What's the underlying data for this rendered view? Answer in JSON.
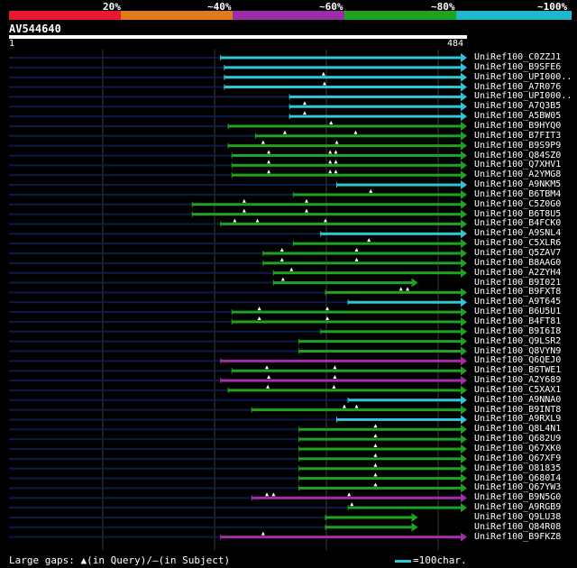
{
  "scale": {
    "colors": [
      "#e8182f",
      "#e07a1d",
      "#9a2ea6",
      "#1fa21f",
      "#20b8c8"
    ],
    "labels": [
      "20%",
      "~40%",
      "~60%",
      "~80%",
      "~100%"
    ]
  },
  "query": {
    "name": "AV544640",
    "start": "1",
    "end": "484",
    "length": 484
  },
  "legend": {
    "gaps_prefix": "Large gaps:",
    "gaps_query": "(in Query)/",
    "gaps_dash": "–",
    "gaps_subject": "(in Subject)",
    "scale_text": "=100char."
  },
  "colors": {
    "cyan": "#2fc7d6",
    "green": "#1fa21f",
    "magenta": "#a52ea8",
    "navy": "#0d1b4a",
    "grid": "#3a3a3a"
  },
  "hits": [
    {
      "label": "UniRef100_C0ZZJ1",
      "s": 225,
      "e": 484,
      "c": "cyan",
      "g": []
    },
    {
      "label": "UniRef100_B9SFE6",
      "s": 229,
      "e": 484,
      "c": "cyan",
      "g": []
    },
    {
      "label": "UniRef100_UPI000..",
      "s": 229,
      "e": 484,
      "c": "cyan",
      "g": [
        334
      ]
    },
    {
      "label": "UniRef100_A7R076",
      "s": 229,
      "e": 484,
      "c": "cyan",
      "g": [
        335
      ]
    },
    {
      "label": "UniRef100_UPI000..",
      "s": 298,
      "e": 484,
      "c": "cyan",
      "g": []
    },
    {
      "label": "UniRef100_A7Q3B5",
      "s": 298,
      "e": 484,
      "c": "cyan",
      "g": [
        314
      ]
    },
    {
      "label": "UniRef100_A5BW05",
      "s": 298,
      "e": 484,
      "c": "cyan",
      "g": [
        314
      ]
    },
    {
      "label": "UniRef100_B9HYQ0",
      "s": 233,
      "e": 484,
      "c": "green",
      "g": [
        342
      ]
    },
    {
      "label": "UniRef100_B7FIT3",
      "s": 262,
      "e": 484,
      "c": "green",
      "g": [
        293,
        368
      ]
    },
    {
      "label": "UniRef100_B9S9P9",
      "s": 233,
      "e": 484,
      "c": "green",
      "g": [
        270,
        348
      ]
    },
    {
      "label": "UniRef100_Q84SZ0",
      "s": 237,
      "e": 484,
      "c": "green",
      "g": [
        276,
        341,
        347
      ]
    },
    {
      "label": "UniRef100_Q7XHV1",
      "s": 237,
      "e": 484,
      "c": "green",
      "g": [
        276,
        341,
        347
      ]
    },
    {
      "label": "UniRef100_A2YMG8",
      "s": 237,
      "e": 484,
      "c": "green",
      "g": [
        276,
        341,
        347
      ]
    },
    {
      "label": "UniRef100_A9NKM5",
      "s": 348,
      "e": 484,
      "c": "cyan",
      "g": []
    },
    {
      "label": "UniRef100_B6TBM4",
      "s": 302,
      "e": 484,
      "c": "green",
      "g": [
        384
      ]
    },
    {
      "label": "UniRef100_C5Z0G0",
      "s": 195,
      "e": 484,
      "c": "green",
      "g": [
        250,
        316
      ]
    },
    {
      "label": "UniRef100_B6T8U5",
      "s": 195,
      "e": 484,
      "c": "green",
      "g": [
        250,
        316
      ]
    },
    {
      "label": "UniRef100_B4FCK0",
      "s": 225,
      "e": 484,
      "c": "green",
      "g": [
        240,
        264,
        336
      ]
    },
    {
      "label": "UniRef100_A9SNL4",
      "s": 331,
      "e": 484,
      "c": "cyan",
      "g": []
    },
    {
      "label": "UniRef100_C5XLR6",
      "s": 302,
      "e": 484,
      "c": "green",
      "g": [
        382
      ]
    },
    {
      "label": "UniRef100_Q5ZAV7",
      "s": 270,
      "e": 484,
      "c": "green",
      "g": [
        290,
        369
      ]
    },
    {
      "label": "UniRef100_B8AAG0",
      "s": 270,
      "e": 484,
      "c": "green",
      "g": [
        290,
        369
      ]
    },
    {
      "label": "UniRef100_A2ZYH4",
      "s": 281,
      "e": 484,
      "c": "green",
      "g": [
        300
      ]
    },
    {
      "label": "UniRef100_B9I021",
      "s": 281,
      "e": 432,
      "c": "green",
      "g": [
        291
      ]
    },
    {
      "label": "UniRef100_B9FXT8",
      "s": 336,
      "e": 484,
      "c": "green",
      "g": [
        416,
        423
      ]
    },
    {
      "label": "UniRef100_A9T645",
      "s": 360,
      "e": 484,
      "c": "cyan",
      "g": []
    },
    {
      "label": "UniRef100_B6U5U1",
      "s": 237,
      "e": 484,
      "c": "green",
      "g": [
        266,
        338
      ]
    },
    {
      "label": "UniRef100_B4FT81",
      "s": 237,
      "e": 484,
      "c": "green",
      "g": [
        266,
        338
      ]
    },
    {
      "label": "UniRef100_B9I6I8",
      "s": 331,
      "e": 484,
      "c": "green",
      "g": []
    },
    {
      "label": "UniRef100_Q9LSR2",
      "s": 308,
      "e": 484,
      "c": "green",
      "g": []
    },
    {
      "label": "UniRef100_Q8VYN9",
      "s": 308,
      "e": 484,
      "c": "green",
      "g": []
    },
    {
      "label": "UniRef100_Q6QEJ0",
      "s": 225,
      "e": 484,
      "c": "magenta",
      "g": []
    },
    {
      "label": "UniRef100_B6TWE1",
      "s": 237,
      "e": 484,
      "c": "green",
      "g": [
        274,
        346
      ]
    },
    {
      "label": "UniRef100_A2Y689",
      "s": 225,
      "e": 484,
      "c": "magenta",
      "g": [
        276,
        346
      ]
    },
    {
      "label": "UniRef100_C5XAX1",
      "s": 233,
      "e": 484,
      "c": "green",
      "g": [
        275,
        345
      ]
    },
    {
      "label": "UniRef100_A9NNA0",
      "s": 360,
      "e": 484,
      "c": "cyan",
      "g": []
    },
    {
      "label": "UniRef100_B9INT8",
      "s": 258,
      "e": 484,
      "c": "green",
      "g": [
        356,
        369
      ]
    },
    {
      "label": "UniRef100_A9RXL9",
      "s": 348,
      "e": 484,
      "c": "cyan",
      "g": []
    },
    {
      "label": "UniRef100_Q8L4N1",
      "s": 308,
      "e": 484,
      "c": "green",
      "g": [
        389
      ]
    },
    {
      "label": "UniRef100_Q682U9",
      "s": 308,
      "e": 484,
      "c": "green",
      "g": [
        389
      ]
    },
    {
      "label": "UniRef100_Q67XK0",
      "s": 308,
      "e": 484,
      "c": "green",
      "g": [
        389
      ]
    },
    {
      "label": "UniRef100_Q67XF9",
      "s": 308,
      "e": 484,
      "c": "green",
      "g": [
        389
      ]
    },
    {
      "label": "UniRef100_O81835",
      "s": 308,
      "e": 484,
      "c": "green",
      "g": [
        389
      ]
    },
    {
      "label": "UniRef100_Q680I4",
      "s": 308,
      "e": 484,
      "c": "green",
      "g": [
        389
      ]
    },
    {
      "label": "UniRef100_Q67YW3",
      "s": 308,
      "e": 484,
      "c": "green",
      "g": [
        389
      ]
    },
    {
      "label": "UniRef100_B9N5G0",
      "s": 258,
      "e": 484,
      "c": "magenta",
      "g": [
        274,
        281,
        361
      ]
    },
    {
      "label": "UniRef100_A9RGB9",
      "s": 360,
      "e": 484,
      "c": "green",
      "g": [
        364
      ]
    },
    {
      "label": "UniRef100_Q9LU38",
      "s": 336,
      "e": 432,
      "c": "green",
      "g": []
    },
    {
      "label": "UniRef100_Q84R08",
      "s": 336,
      "e": 432,
      "c": "green",
      "g": []
    },
    {
      "label": "UniRef100_B9FKZ8",
      "s": 225,
      "e": 484,
      "c": "magenta",
      "g": [
        270
      ]
    }
  ]
}
